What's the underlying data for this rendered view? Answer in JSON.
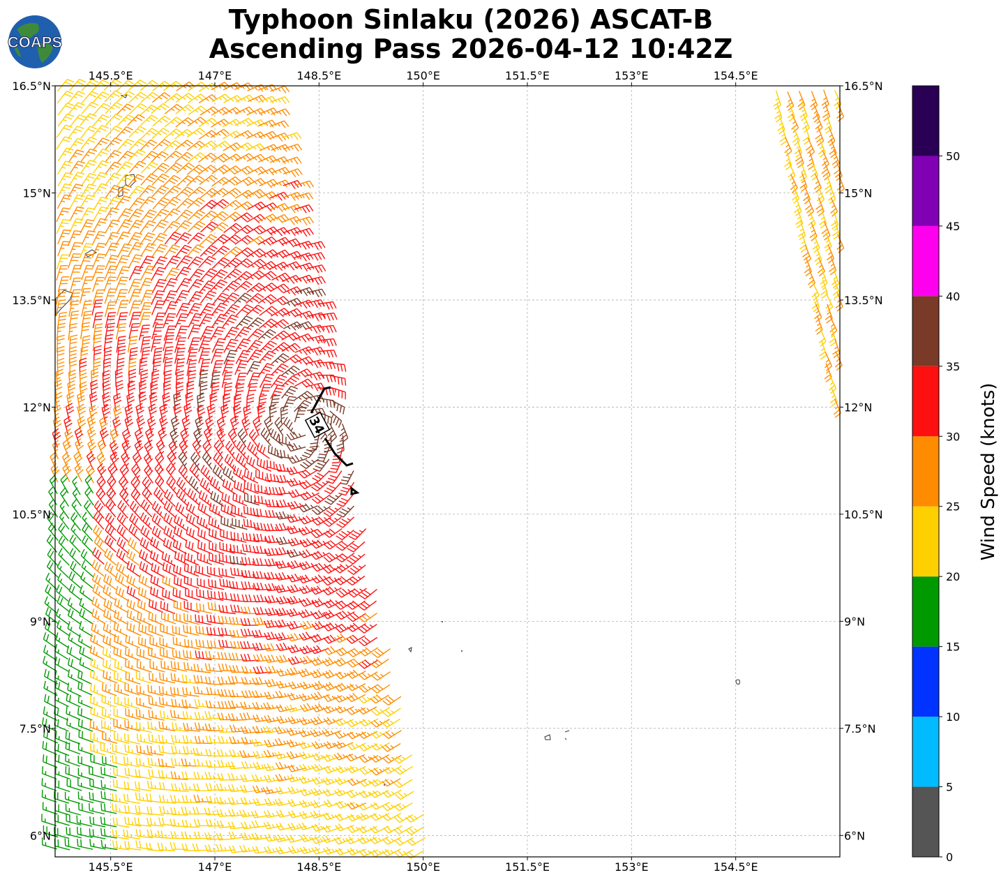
{
  "title_line1": "Typhoon Sinlaku (2026) ASCAT-B",
  "title_line2": "Ascending Pass 2026-04-12 10:42Z",
  "logo_text": "COAPS",
  "map": {
    "lon_range": [
      144.7,
      156.0
    ],
    "lat_range": [
      5.7,
      16.5
    ],
    "lon_ticks": [
      "145.5°E",
      "147°E",
      "148.5°E",
      "150°E",
      "151.5°E",
      "153°E",
      "154.5°E"
    ],
    "lon_tick_values": [
      145.5,
      147.0,
      148.5,
      150.0,
      151.5,
      153.0,
      154.5
    ],
    "lat_ticks": [
      "16.5°N",
      "15°N",
      "13.5°N",
      "12°N",
      "10.5°N",
      "9°N",
      "7.5°N",
      "6°N"
    ],
    "lat_tick_values": [
      16.5,
      15.0,
      13.5,
      12.0,
      10.5,
      9.0,
      7.5,
      6.0
    ],
    "grid": true,
    "contour_label": "34"
  },
  "colorbar": {
    "label": "Wind Speed (knots)",
    "bounds": [
      0,
      5,
      10,
      15,
      20,
      25,
      30,
      35,
      40,
      45,
      50,
      55
    ],
    "tick_labels": [
      "0",
      "5",
      "10",
      "15",
      "20",
      "25",
      "30",
      "35",
      "40",
      "45",
      "50"
    ],
    "colors": [
      "#555555",
      "#00bbff",
      "#0033ff",
      "#009900",
      "#ffd000",
      "#ff8c00",
      "#ff1010",
      "#7a3a28",
      "#ff00ee",
      "#8000b3",
      "#2a0055"
    ]
  },
  "chart_data": {
    "type": "wind_barbs",
    "storm": "Typhoon Sinlaku (2026)",
    "instrument": "ASCAT-B",
    "pass": "Ascending",
    "time": "2026-04-12 10:42Z",
    "center_approx": {
      "lon": 148.3,
      "lat": 11.7
    },
    "swaths": [
      {
        "name": "west",
        "speed_range_kt": [
          15,
          40
        ],
        "east_edge_lon": [
          148.4,
          150.0
        ]
      },
      {
        "name": "east",
        "speed_range_kt": [
          20,
          30
        ],
        "west_edge_lon": [
          155.0,
          155.6
        ]
      }
    ],
    "r34_contour_kt": 34
  }
}
